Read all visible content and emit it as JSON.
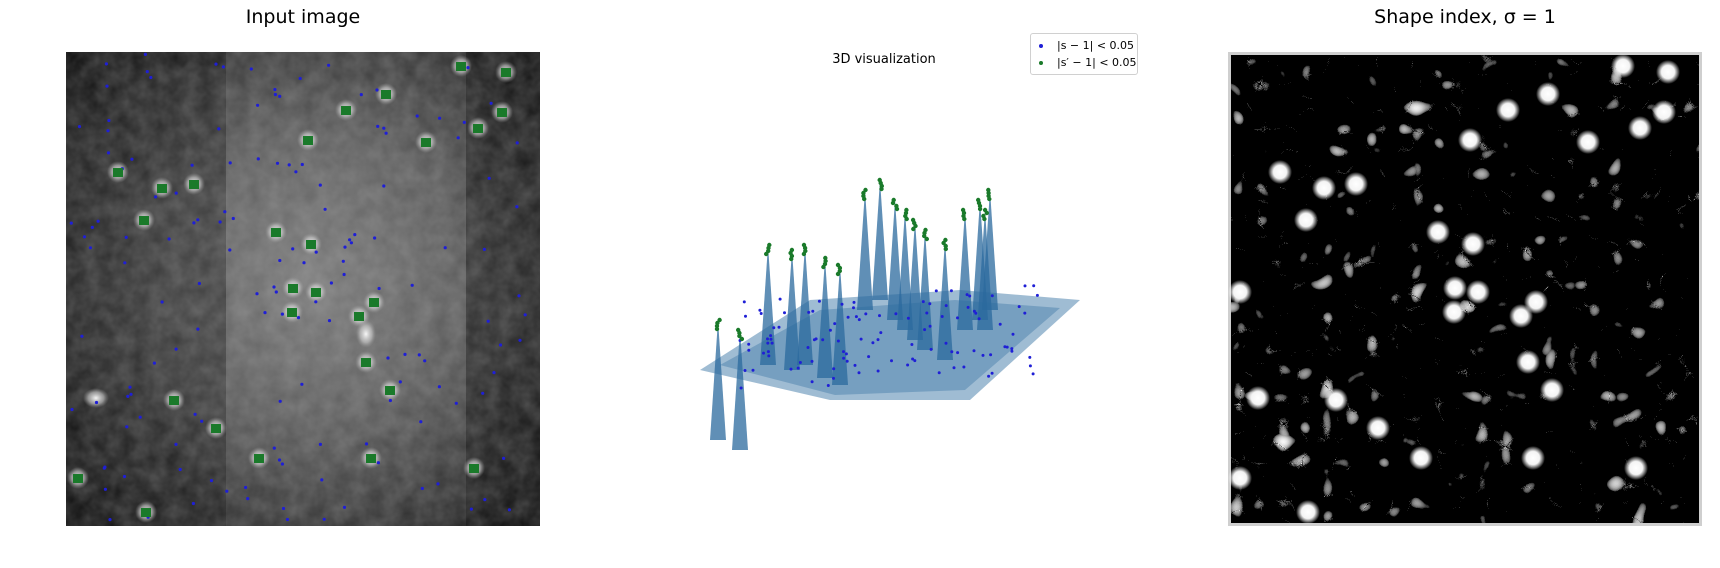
{
  "chart_data": [
    {
      "type": "heatmap",
      "title": "Input image",
      "colormap": "gray",
      "overlay": {
        "series": [
          {
            "name": "|s − 1| < 0.05",
            "color": "#1f1fd6",
            "marker": "dot"
          },
          {
            "name": "|s′ − 1| < 0.05",
            "color": "#1a7a2a",
            "marker": "square"
          }
        ]
      }
    },
    {
      "type": "area",
      "projection": "3d-surface",
      "title": "3D visualization",
      "surface_color": "#2b6a9e",
      "legend_placement": "top-right",
      "series": [
        {
          "name": "|s − 1| < 0.05",
          "color": "#1f1fd6"
        },
        {
          "name": "|s′ − 1| < 0.05",
          "color": "#1a7a2a"
        }
      ]
    },
    {
      "type": "heatmap",
      "title": "Shape index, σ = 1",
      "colormap": "gray"
    }
  ]
}
